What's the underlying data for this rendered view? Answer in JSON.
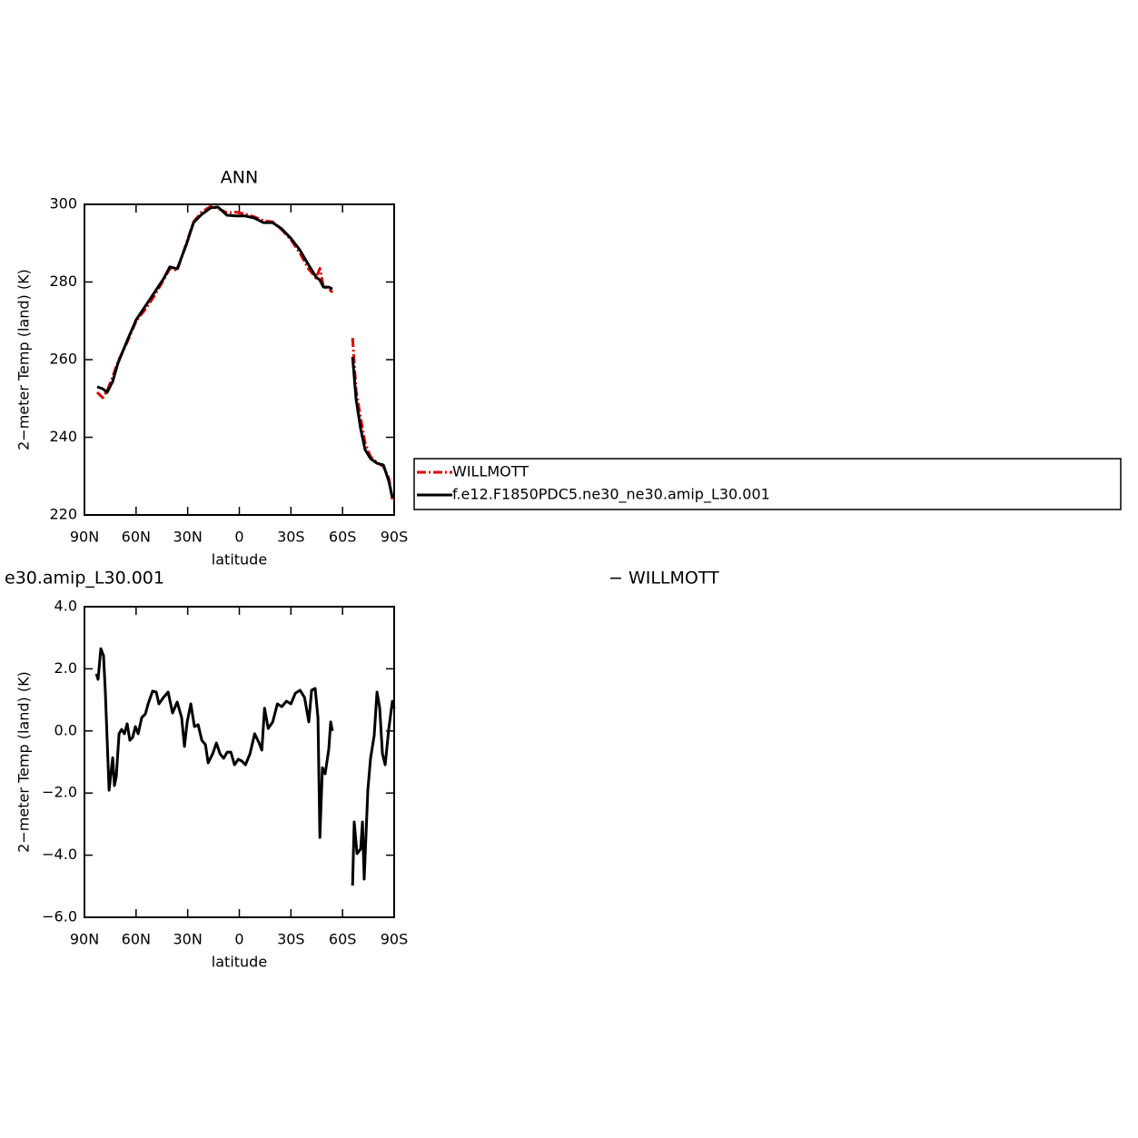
{
  "chart_data": [
    {
      "type": "line",
      "title": "ANN",
      "xlabel": "latitude",
      "ylabel": "2−meter Temp (land) (K)",
      "x": [
        82.6,
        79.4,
        76.8,
        73.6,
        70.5,
        65.2,
        59.9,
        54.6,
        49.3,
        44.1,
        40.4,
        36.1,
        30.9,
        26.6,
        21.9,
        16.6,
        12.4,
        7.1,
        1.8,
        -3.4,
        -8.7,
        -14.0,
        -19.3,
        -24.6,
        -29.9,
        -35.1,
        -40.4,
        -44.6,
        -46.8,
        -48.9,
        -52.0,
        -54.1,
        -60.0,
        -65.8,
        -67.9,
        -70.5,
        -73.1,
        -76.3,
        -80.0,
        -83.7,
        -86.9,
        -89.0
      ],
      "series": [
        {
          "name": "WILLMOTT",
          "color": "#e00000",
          "dash": "dashed",
          "values": [
            251.6,
            250.2,
            252.0,
            255.6,
            259.5,
            264.5,
            270.0,
            273.0,
            276.5,
            280.5,
            283.5,
            283.0,
            289.8,
            295.5,
            298.0,
            299.5,
            299.0,
            297.8,
            298.0,
            297.5,
            296.8,
            295.8,
            295.5,
            293.5,
            291.0,
            287.5,
            283.3,
            281.0,
            283.5,
            278.8,
            278.3,
            277.3,
            null,
            265.6,
            252.0,
            245.0,
            238.5,
            235.0,
            233.5,
            232.5,
            229.5,
            224.0
          ]
        },
        {
          "name": "f.e12.F1850PDC5.ne30_ne30.amip_L30.001",
          "color": "#000000",
          "dash": "solid",
          "values": [
            253.0,
            252.5,
            251.6,
            254.4,
            259.1,
            264.9,
            270.3,
            273.8,
            277.3,
            280.8,
            283.9,
            283.4,
            289.5,
            295.3,
            297.4,
            299.1,
            299.3,
            297.2,
            297.0,
            297.0,
            296.5,
            295.3,
            295.3,
            293.7,
            291.3,
            288.3,
            284.3,
            281.3,
            280.5,
            278.7,
            278.7,
            278.2,
            null,
            260.7,
            249.7,
            242.2,
            236.8,
            234.5,
            233.3,
            232.9,
            228.7,
            224.4
          ]
        }
      ],
      "xlim": [
        90,
        -90
      ],
      "xticks": [
        {
          "value": 90,
          "label": "90N"
        },
        {
          "value": 60,
          "label": "60N"
        },
        {
          "value": 30,
          "label": "30N"
        },
        0,
        {
          "value": -30,
          "label": "30S"
        },
        {
          "value": -60,
          "label": "60S"
        },
        {
          "value": -90,
          "label": "90S"
        }
      ],
      "ylim": [
        220,
        300
      ],
      "yticks": [
        220,
        240,
        260,
        280,
        300
      ],
      "legend": "right"
    },
    {
      "type": "line",
      "title_left": "e30.amip_L30.001",
      "title_right": "− WILLMOTT",
      "xlabel": "latitude",
      "ylabel": "2−meter Temp (land) (K)",
      "x": [
        83.1,
        82.1,
        80.5,
        78.9,
        77.9,
        75.7,
        73.6,
        72.6,
        71.5,
        69.9,
        68.4,
        66.8,
        65.2,
        63.6,
        62.0,
        60.4,
        58.8,
        56.7,
        54.6,
        53.0,
        50.4,
        48.3,
        46.7,
        44.1,
        41.4,
        38.8,
        36.1,
        33.5,
        31.9,
        30.3,
        28.2,
        26.1,
        23.9,
        21.8,
        19.7,
        18.1,
        15.5,
        13.3,
        11.2,
        9.1,
        7.0,
        4.9,
        2.8,
        0.6,
        -1.5,
        -3.6,
        -6.2,
        -8.9,
        -11.5,
        -13.1,
        -14.7,
        -16.8,
        -19.4,
        -22.1,
        -24.7,
        -27.4,
        -30.0,
        -32.6,
        -35.3,
        -37.9,
        -40.4,
        -42.0,
        -44.1,
        -45.7,
        -46.8,
        -48.3,
        -49.9,
        -52.0,
        -53.1,
        -54.1,
        -60.0,
        -65.8,
        -66.8,
        -68.4,
        -70.5,
        -71.6,
        -72.6,
        -74.7,
        -76.3,
        -78.4,
        -80.0,
        -81.6,
        -83.2,
        -84.8,
        -86.9,
        -89.0,
        -90.0
      ],
      "series": [
        {
          "color": "#000000",
          "dash": "solid",
          "values": [
            1.84,
            1.66,
            2.65,
            2.42,
            1.31,
            -1.91,
            -0.86,
            -1.76,
            -1.47,
            -0.09,
            0.05,
            -0.09,
            0.23,
            -0.3,
            -0.21,
            0.14,
            -0.09,
            0.43,
            0.55,
            0.87,
            1.28,
            1.25,
            0.87,
            1.08,
            1.25,
            0.58,
            0.93,
            0.43,
            -0.5,
            0.29,
            0.87,
            0.14,
            0.2,
            -0.3,
            -0.44,
            -1.03,
            -0.74,
            -0.39,
            -0.74,
            -0.88,
            -0.68,
            -0.68,
            -1.09,
            -0.91,
            -0.97,
            -1.09,
            -0.74,
            -0.09,
            -0.39,
            -0.62,
            0.73,
            0.08,
            0.29,
            0.87,
            0.78,
            0.96,
            0.87,
            1.22,
            1.31,
            1.08,
            0.29,
            1.31,
            1.37,
            0.43,
            -3.43,
            -1.18,
            -1.38,
            -0.59,
            0.29,
            0.0,
            null,
            -4.98,
            -2.93,
            -3.95,
            -3.8,
            -2.93,
            -4.77,
            -1.91,
            -0.88,
            -0.15,
            1.25,
            0.73,
            -0.74,
            -1.09,
            0.08,
            0.96,
            0.73
          ]
        }
      ],
      "xlim": [
        90,
        -90
      ],
      "xticks": [
        {
          "value": 90,
          "label": "90N"
        },
        {
          "value": 60,
          "label": "60N"
        },
        {
          "value": 30,
          "label": "30N"
        },
        0,
        {
          "value": -30,
          "label": "30S"
        },
        {
          "value": -60,
          "label": "60S"
        },
        {
          "value": -90,
          "label": "90S"
        }
      ],
      "ylim": [
        -6,
        4
      ],
      "yticks": [
        {
          "value": -6,
          "label": "−6.0"
        },
        {
          "value": -4,
          "label": "−4.0"
        },
        {
          "value": -2,
          "label": "−2.0"
        },
        {
          "value": 0,
          "label": "0.0"
        },
        {
          "value": 2,
          "label": "2.0"
        },
        {
          "value": 4,
          "label": "4.0"
        }
      ]
    }
  ]
}
